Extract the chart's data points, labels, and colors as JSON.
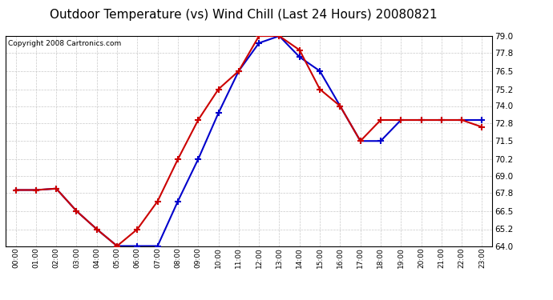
{
  "title": "Outdoor Temperature (vs) Wind Chill (Last 24 Hours) 20080821",
  "copyright": "Copyright 2008 Cartronics.com",
  "hours": [
    0,
    1,
    2,
    3,
    4,
    5,
    6,
    7,
    8,
    9,
    10,
    11,
    12,
    13,
    14,
    15,
    16,
    17,
    18,
    19,
    20,
    21,
    22,
    23
  ],
  "temp": [
    68.0,
    68.0,
    68.1,
    66.5,
    65.2,
    64.0,
    65.2,
    67.2,
    70.2,
    73.0,
    75.2,
    76.5,
    79.0,
    79.0,
    78.0,
    75.2,
    74.0,
    71.5,
    73.0,
    73.0,
    73.0,
    73.0,
    73.0,
    72.5
  ],
  "windchill": [
    68.0,
    68.0,
    68.1,
    66.5,
    65.2,
    64.0,
    64.0,
    64.0,
    67.2,
    70.2,
    73.5,
    76.5,
    78.5,
    79.0,
    77.5,
    76.5,
    74.0,
    71.5,
    71.5,
    73.0,
    73.0,
    73.0,
    73.0,
    73.0
  ],
  "ylim": [
    64.0,
    79.0
  ],
  "yticks": [
    64.0,
    65.2,
    66.5,
    67.8,
    69.0,
    70.2,
    71.5,
    72.8,
    74.0,
    75.2,
    76.5,
    77.8,
    79.0
  ],
  "temp_color": "#cc0000",
  "windchill_color": "#0000cc",
  "plot_bg_color": "#ffffff",
  "fig_bg_color": "#ffffff",
  "grid_color": "#bbbbbb",
  "title_fontsize": 11,
  "copyright_fontsize": 6.5
}
